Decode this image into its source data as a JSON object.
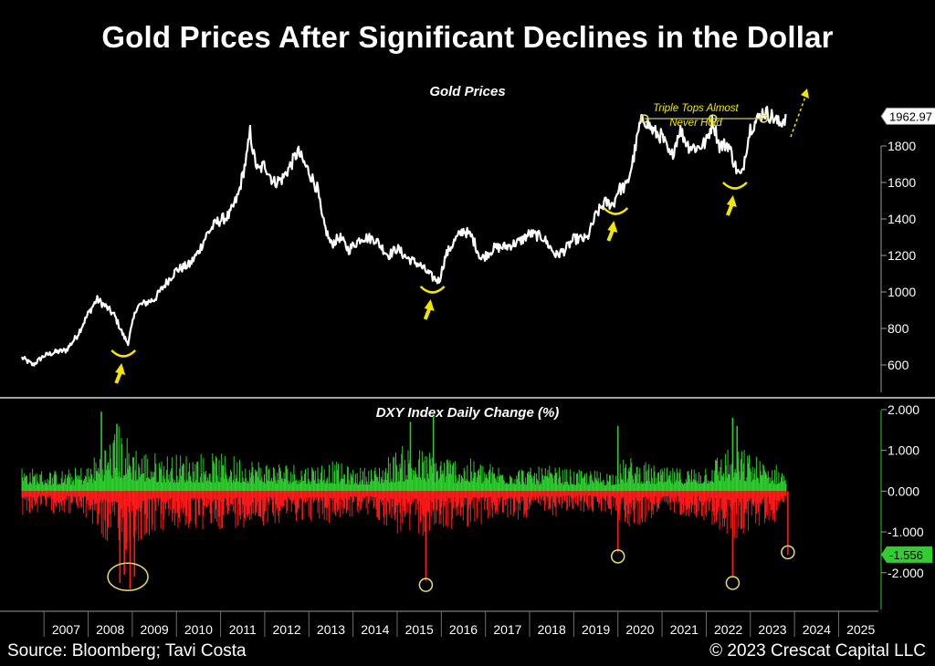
{
  "title": "Gold Prices After Significant Declines in the Dollar",
  "source": "Source: Bloomberg; Tavi Costa",
  "copyright": "© 2023 Crescat Capital LLC",
  "colors": {
    "background": "#000000",
    "gold_line": "#ffffff",
    "positive_bar": "#2ecc2e",
    "negative_bar": "#ff1a1a",
    "annotation": "#f2e600",
    "circle": "#e8e066",
    "last_value_badge": "#33cc33"
  },
  "chart_data": [
    {
      "type": "line",
      "title": "Gold Prices",
      "annotation": "Triple Tops Almost Never Hold",
      "last_value": "1962.97",
      "ylim": [
        450,
        2150
      ],
      "y_ticks": [
        "600",
        "800",
        "1000",
        "1200",
        "1400",
        "1600",
        "1800"
      ],
      "y_tick_values": [
        600,
        800,
        1000,
        1200,
        1400,
        1600,
        1800
      ],
      "series": [
        {
          "x": [
            2006.5,
            2006.75,
            2007.0,
            2007.25,
            2007.5,
            2007.75,
            2008.0,
            2008.2,
            2008.4,
            2008.6,
            2008.8,
            2008.9,
            2009.1,
            2009.3,
            2009.5,
            2009.8,
            2010.0,
            2010.3,
            2010.5,
            2010.7,
            2010.9,
            2011.2,
            2011.4,
            2011.6,
            2011.67,
            2011.75,
            2011.85,
            2012.0,
            2012.2,
            2012.4,
            2012.6,
            2012.75,
            2012.9,
            2013.0,
            2013.2,
            2013.3,
            2013.5,
            2013.7,
            2013.9,
            2014.2,
            2014.5,
            2014.8,
            2015.0,
            2015.2,
            2015.5,
            2015.8,
            2015.95,
            2016.1,
            2016.3,
            2016.5,
            2016.7,
            2016.9,
            2017.2,
            2017.5,
            2017.8,
            2018.0,
            2018.3,
            2018.6,
            2018.8,
            2019.0,
            2019.3,
            2019.5,
            2019.7,
            2019.9,
            2020.0,
            2020.2,
            2020.35,
            2020.5,
            2020.6,
            2020.8,
            2021.0,
            2021.2,
            2021.4,
            2021.6,
            2021.8,
            2022.0,
            2022.15,
            2022.3,
            2022.5,
            2022.7,
            2022.8,
            2022.9,
            2023.0,
            2023.15,
            2023.3,
            2023.5,
            2023.65,
            2023.8
          ],
          "y": [
            640,
            600,
            650,
            670,
            680,
            760,
            880,
            960,
            920,
            870,
            760,
            720,
            920,
            940,
            960,
            1060,
            1120,
            1150,
            1220,
            1320,
            1380,
            1420,
            1530,
            1750,
            1880,
            1750,
            1660,
            1700,
            1600,
            1620,
            1700,
            1770,
            1700,
            1660,
            1560,
            1400,
            1260,
            1300,
            1230,
            1300,
            1290,
            1200,
            1240,
            1190,
            1150,
            1080,
            1060,
            1200,
            1280,
            1340,
            1300,
            1180,
            1240,
            1250,
            1280,
            1320,
            1300,
            1200,
            1230,
            1290,
            1290,
            1420,
            1490,
            1480,
            1560,
            1580,
            1730,
            1920,
            1950,
            1880,
            1850,
            1730,
            1890,
            1800,
            1790,
            1820,
            1940,
            1800,
            1810,
            1660,
            1630,
            1780,
            1900,
            1940,
            1990,
            1960,
            1920,
            1960
          ]
        }
      ]
    },
    {
      "type": "bar",
      "title": "DXY Index Daily Change (%)",
      "last_value": "-1.556",
      "ylim": [
        -2.9,
        2.2
      ],
      "y_ticks": [
        "2.000",
        "1.000",
        "0.000",
        "-1.000",
        "-2.000"
      ],
      "y_tick_values": [
        2,
        1,
        0,
        -1,
        -2
      ],
      "x_ticks": [
        "2007",
        "2008",
        "2009",
        "2010",
        "2011",
        "2012",
        "2013",
        "2014",
        "2015",
        "2016",
        "2017",
        "2018",
        "2019",
        "2020",
        "2021",
        "2022",
        "2023",
        "2024",
        "2025"
      ],
      "envelope_x": [
        2006.5,
        2007.0,
        2007.5,
        2008.0,
        2008.4,
        2008.7,
        2008.9,
        2009.2,
        2009.5,
        2010.0,
        2010.5,
        2011.0,
        2011.5,
        2012.0,
        2012.5,
        2013.0,
        2013.5,
        2014.0,
        2014.5,
        2014.9,
        2015.2,
        2015.5,
        2015.9,
        2016.3,
        2016.8,
        2017.2,
        2017.6,
        2018.0,
        2018.5,
        2019.0,
        2019.5,
        2019.9,
        2020.2,
        2020.6,
        2021.0,
        2021.5,
        2021.9,
        2022.2,
        2022.5,
        2022.8,
        2023.0,
        2023.3,
        2023.6,
        2023.75,
        2023.8
      ],
      "envelope_pos": [
        0.55,
        0.45,
        0.45,
        0.6,
        1.2,
        1.6,
        1.3,
        1.0,
        0.9,
        0.85,
        0.9,
        0.85,
        0.8,
        0.7,
        0.65,
        0.6,
        0.7,
        0.5,
        0.55,
        0.9,
        1.1,
        1.0,
        0.9,
        0.8,
        0.7,
        0.6,
        0.6,
        0.5,
        0.55,
        0.45,
        0.45,
        0.45,
        0.8,
        0.65,
        0.5,
        0.5,
        0.6,
        0.8,
        1.1,
        1.0,
        0.9,
        0.7,
        0.6,
        0.5,
        0.4
      ],
      "envelope_neg": [
        -0.55,
        -0.5,
        -0.5,
        -0.7,
        -1.3,
        -1.8,
        -1.4,
        -1.2,
        -1.0,
        -0.95,
        -1.0,
        -0.9,
        -0.85,
        -0.8,
        -0.7,
        -0.7,
        -0.8,
        -0.6,
        -0.6,
        -1.0,
        -1.2,
        -1.1,
        -1.0,
        -0.9,
        -0.8,
        -0.7,
        -0.7,
        -0.6,
        -0.6,
        -0.5,
        -0.5,
        -0.55,
        -0.9,
        -0.75,
        -0.55,
        -0.55,
        -0.65,
        -0.9,
        -1.2,
        -1.1,
        -0.95,
        -0.8,
        -0.7,
        -0.6,
        -0.5
      ],
      "spikes": [
        {
          "x": 2008.72,
          "y": -2.25
        },
        {
          "x": 2008.82,
          "y": -2.05
        },
        {
          "x": 2008.95,
          "y": -2.4
        },
        {
          "x": 2009.05,
          "y": -2.1
        },
        {
          "x": 2015.65,
          "y": -2.2
        },
        {
          "x": 2020.0,
          "y": -1.5
        },
        {
          "x": 2022.6,
          "y": -2.1
        },
        {
          "x": 2023.85,
          "y": -1.556
        },
        {
          "x": 2008.3,
          "y": 1.95
        },
        {
          "x": 2008.65,
          "y": 1.65
        },
        {
          "x": 2015.3,
          "y": 1.7
        },
        {
          "x": 2015.82,
          "y": 1.85
        },
        {
          "x": 2020.0,
          "y": 1.6
        },
        {
          "x": 2022.6,
          "y": 1.8
        },
        {
          "x": 2022.7,
          "y": 1.6
        }
      ]
    }
  ],
  "annotations": {
    "arrow_points": [
      {
        "x": 2008.8,
        "y": 680
      },
      {
        "x": 2015.8,
        "y": 1030
      },
      {
        "x": 2019.95,
        "y": 1460
      },
      {
        "x": 2022.65,
        "y": 1600
      }
    ],
    "triple_top_points": [
      {
        "x": 2020.6,
        "y": 1950
      },
      {
        "x": 2022.15,
        "y": 1940
      },
      {
        "x": 2023.3,
        "y": 1950
      }
    ],
    "dxy_circles": [
      {
        "x": 2008.9,
        "y": -2.1,
        "size": "large"
      },
      {
        "x": 2015.65,
        "y": -2.3,
        "size": "small"
      },
      {
        "x": 2020.0,
        "y": -1.6,
        "size": "small"
      },
      {
        "x": 2022.6,
        "y": -2.25,
        "size": "small"
      },
      {
        "x": 2023.85,
        "y": -1.5,
        "size": "small"
      }
    ]
  }
}
